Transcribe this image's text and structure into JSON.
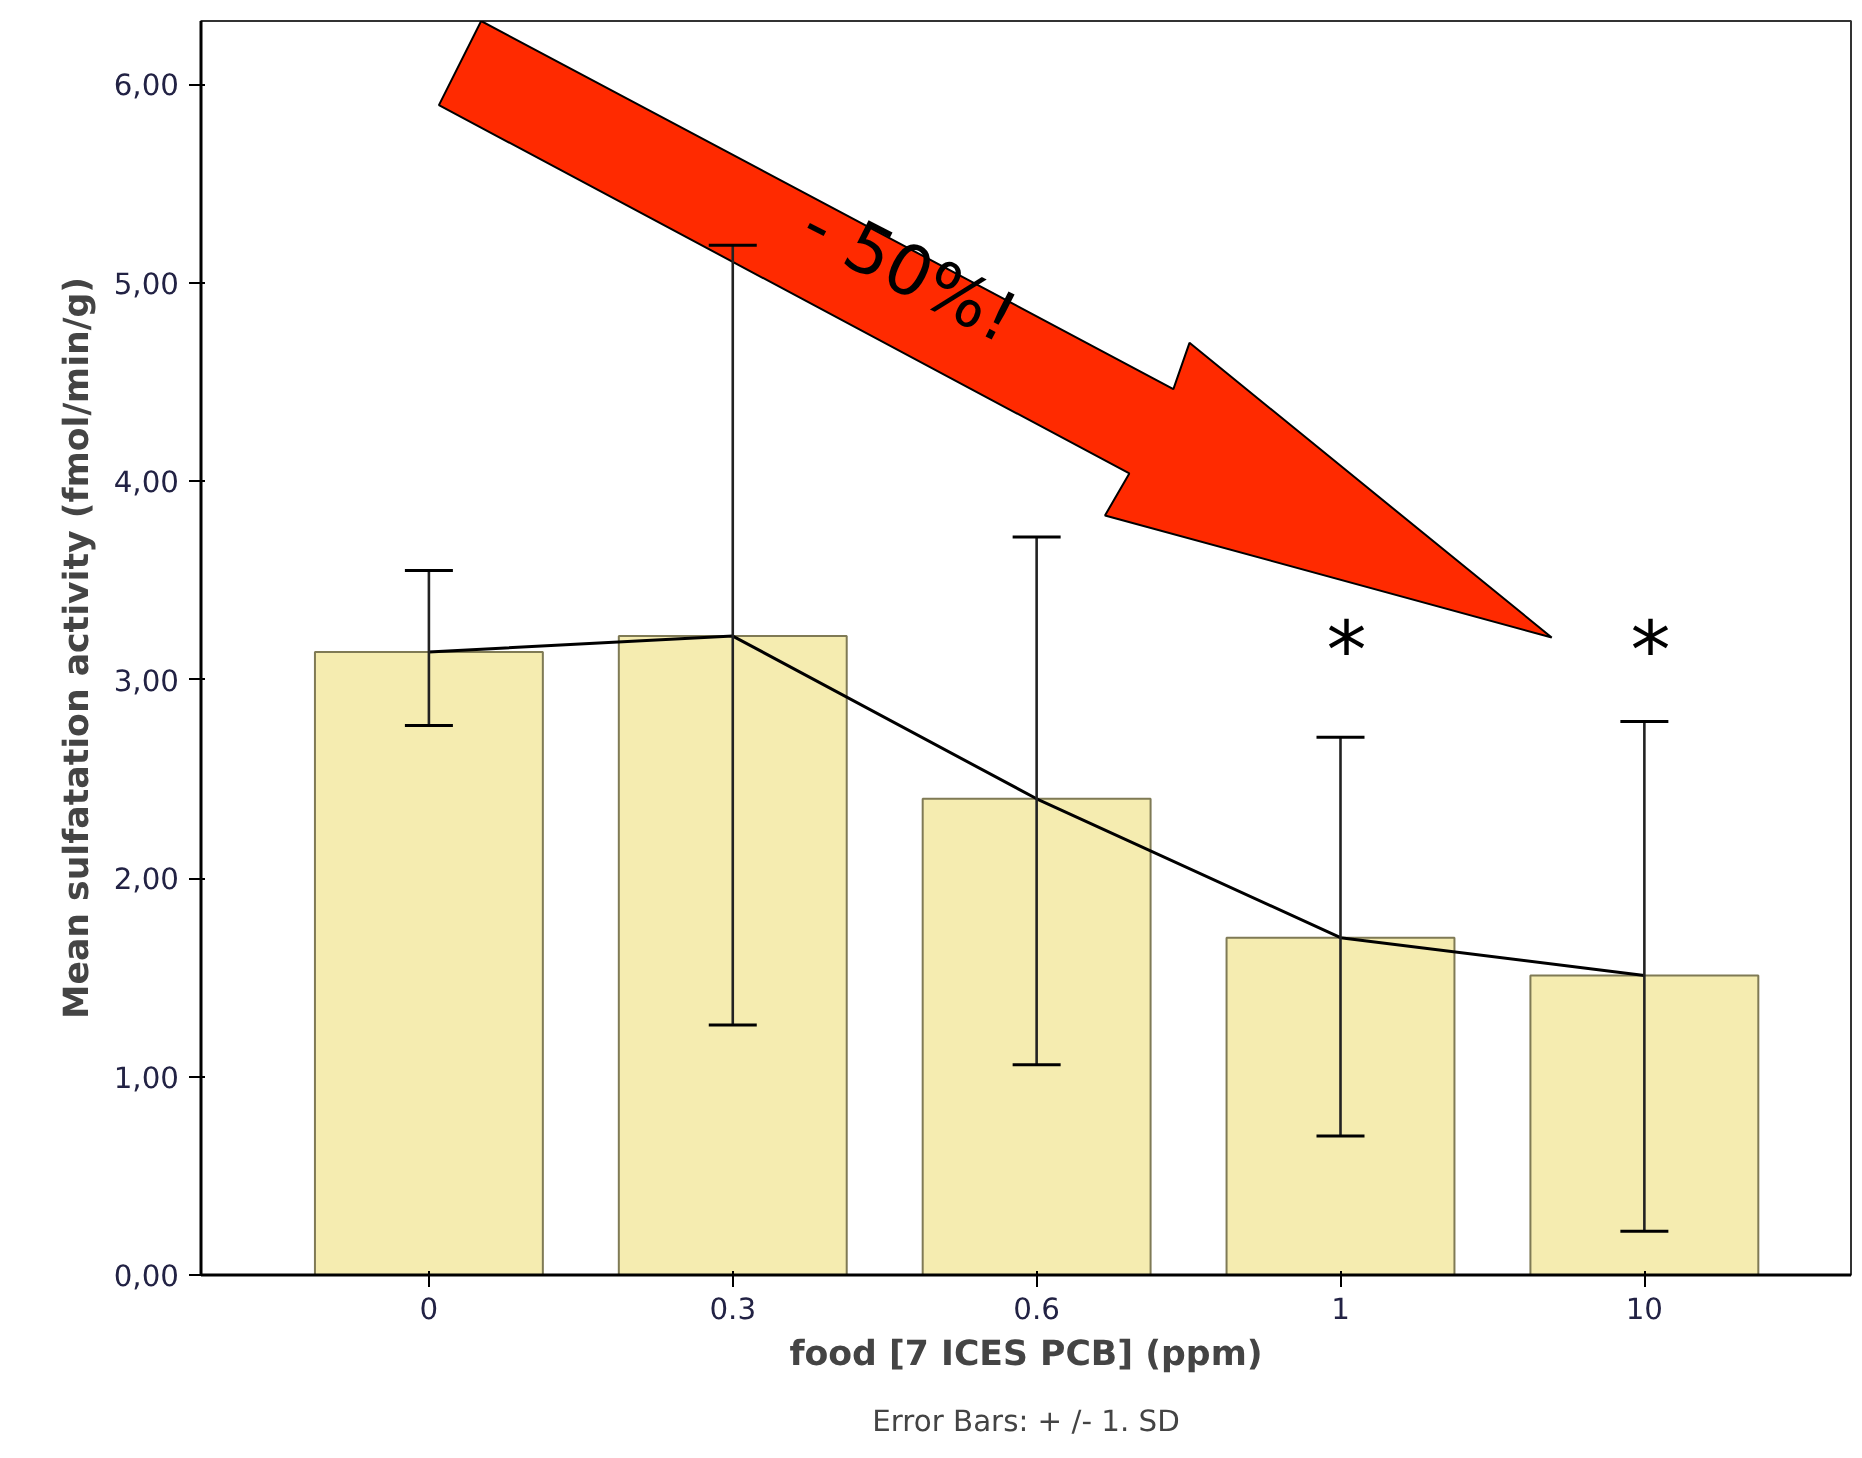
{
  "chart_data": {
    "type": "bar",
    "xlabel": "food [7 ICES PCB] (ppm)",
    "ylabel": "Mean sulfatation activity (fmol/min/g)",
    "categories": [
      "0",
      "0.3",
      "0.6",
      "1",
      "10"
    ],
    "series": [
      {
        "color": "#f5ecb0",
        "values": [
          3.14,
          3.22,
          2.4,
          1.7,
          1.51
        ],
        "errors": [
          [
            2.77,
            3.55
          ],
          [
            1.26,
            5.19
          ],
          [
            1.06,
            3.72
          ],
          [
            0.7,
            2.71
          ],
          [
            0.22,
            2.79
          ]
        ]
      },
      {
        "type": "line",
        "color": "#000000",
        "values": [
          3.14,
          3.22,
          2.4,
          1.7,
          1.51
        ]
      }
    ],
    "ylim": [
      0,
      6.32
    ],
    "yticks": [
      {
        "value": 0,
        "label": "0,00"
      },
      {
        "value": 1,
        "label": "1,00"
      },
      {
        "value": 2,
        "label": "2,00"
      },
      {
        "value": 3,
        "label": "3,00"
      },
      {
        "value": 4,
        "label": "4,00"
      },
      {
        "value": 5,
        "label": "5,00"
      },
      {
        "value": 6,
        "label": "6,00"
      }
    ],
    "grid": false,
    "annotations": [
      "- 50%!",
      "*",
      "*",
      "Error Bars: + /- 1. SD"
    ]
  }
}
